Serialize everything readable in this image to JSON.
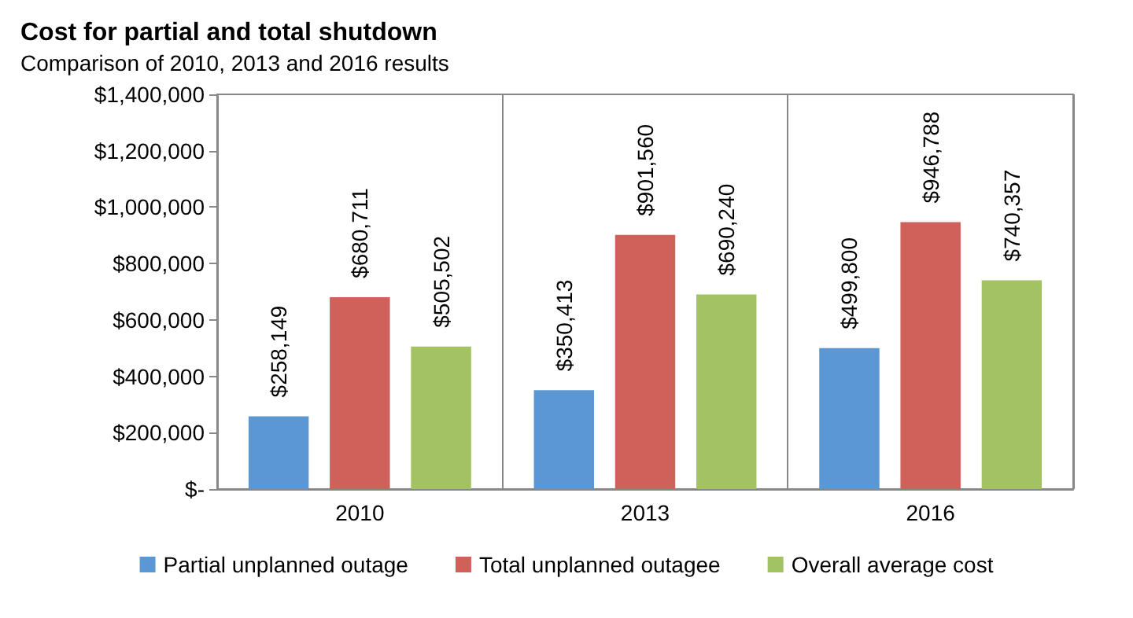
{
  "chart_data": {
    "type": "bar",
    "title": "Cost for partial and total shutdown",
    "subtitle": "Comparison of 2010, 2013 and 2016 results",
    "categories": [
      "2010",
      "2013",
      "2016"
    ],
    "series": [
      {
        "name": "Partial unplanned outage",
        "color": "#5b97d2",
        "values": [
          258149,
          350413,
          499800
        ],
        "value_labels": [
          "$258,149",
          "$350,413",
          "$499,800"
        ]
      },
      {
        "name": "Total unplanned outagee",
        "color": "#d0605a",
        "values": [
          680711,
          901560,
          946788
        ],
        "value_labels": [
          "$680,711",
          "$901,560",
          "$946,788"
        ]
      },
      {
        "name": "Overall average cost",
        "color": "#a2c263",
        "values": [
          505502,
          690240,
          740357
        ],
        "value_labels": [
          "$505,502",
          "$690,240",
          "$740,357"
        ]
      }
    ],
    "ylim": [
      0,
      1400000
    ],
    "yticks": [
      {
        "value": 0,
        "label": "$-"
      },
      {
        "value": 200000,
        "label": "$200,000"
      },
      {
        "value": 400000,
        "label": "$400,000"
      },
      {
        "value": 600000,
        "label": "$600,000"
      },
      {
        "value": 800000,
        "label": "$800,000"
      },
      {
        "value": 1000000,
        "label": "$1,000,000"
      },
      {
        "value": 1200000,
        "label": "$1,200,000"
      },
      {
        "value": 1400000,
        "label": "$1,400,000"
      }
    ],
    "grid": "x",
    "legend": "bottom"
  }
}
